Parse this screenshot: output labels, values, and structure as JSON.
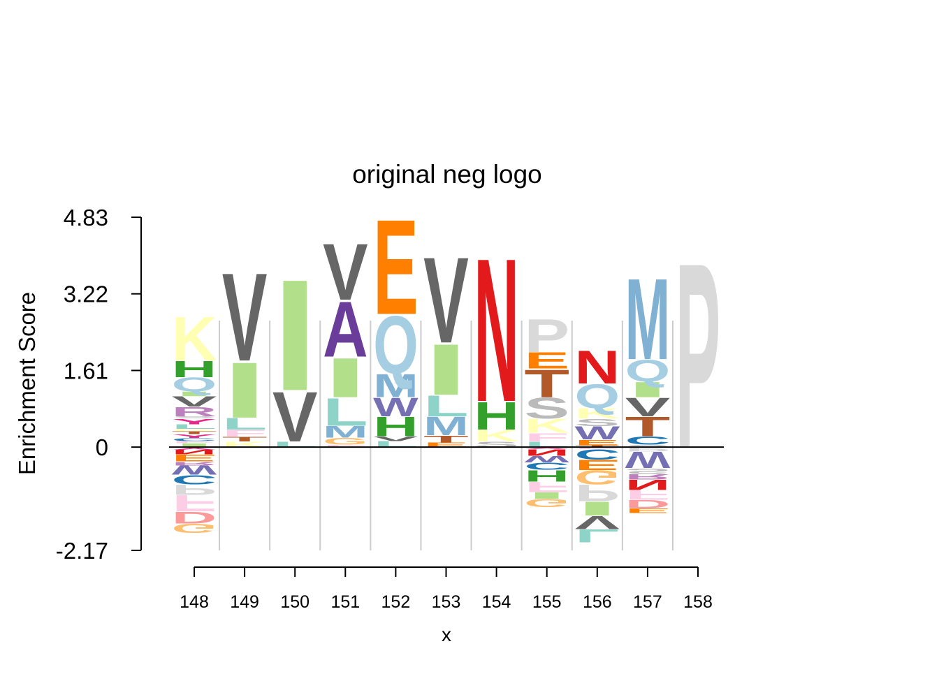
{
  "chart_data": {
    "type": "sequence-logo",
    "title": "original neg logo",
    "xlabel": "x",
    "ylabel": "Enrichment Score",
    "yticks": [
      "4.83",
      "3.22",
      "1.61",
      "0",
      "-2.17"
    ],
    "ylim": [
      -2.17,
      4.83
    ],
    "positions": [
      "148",
      "149",
      "150",
      "151",
      "152",
      "153",
      "154",
      "155",
      "156",
      "157",
      "158"
    ],
    "colors": {
      "A": "#6a3d9a",
      "C": "#1f78b4",
      "D": "#fb9a99",
      "E": "#ff7f00",
      "F": "#fccde5",
      "G": "#fdbf6f",
      "H": "#33a02c",
      "I": "#b2df8a",
      "K": "#ffffb3",
      "L": "#8dd3c7",
      "M": "#80b1d3",
      "N": "#e31a1c",
      "P": "#d9d9d9",
      "Q": "#a6cee3",
      "R": "#bc80bd",
      "S": "#bababa",
      "T": "#b15928",
      "V": "#666666",
      "W": "#7570b3",
      "Y": "#e7298a"
    },
    "columns": [
      {
        "position": "148",
        "positive": [
          [
            "I",
            0.08
          ],
          [
            "F",
            0.05
          ],
          [
            "C",
            0.06
          ],
          [
            "Y",
            0.08
          ],
          [
            "T",
            0.06
          ],
          [
            "K",
            0.05
          ],
          [
            "L",
            0.1
          ],
          [
            "Y",
            0.12
          ],
          [
            "S",
            0.05
          ],
          [
            "R",
            0.2
          ],
          [
            "V",
            0.22
          ],
          [
            "I",
            0.1
          ],
          [
            "Q",
            0.3
          ],
          [
            "H",
            0.35
          ],
          [
            "K",
            0.95
          ]
        ],
        "negative": [
          [
            "Y",
            0.06
          ],
          [
            "N",
            0.1
          ],
          [
            "E",
            0.15
          ],
          [
            "R",
            0.08
          ],
          [
            "W",
            0.2
          ],
          [
            "C",
            0.2
          ],
          [
            "P",
            0.22
          ],
          [
            "F",
            0.35
          ],
          [
            "D",
            0.25
          ],
          [
            "G",
            0.2
          ]
        ]
      },
      {
        "position": "149",
        "positive": [
          [
            "K",
            0.12
          ],
          [
            "T",
            0.1
          ],
          [
            "F",
            0.15
          ],
          [
            "L",
            0.25
          ],
          [
            "I",
            1.2
          ],
          [
            "V",
            1.9
          ]
        ],
        "negative": []
      },
      {
        "position": "150",
        "positive": [
          [
            "L",
            0.12
          ],
          [
            "V",
            1.08
          ],
          [
            "I",
            2.4
          ]
        ],
        "negative": []
      },
      {
        "position": "151",
        "positive": [
          [
            "F",
            0.05
          ],
          [
            "G",
            0.15
          ],
          [
            "M",
            0.25
          ],
          [
            "L",
            0.6
          ],
          [
            "I",
            0.85
          ],
          [
            "A",
            1.2
          ],
          [
            "V",
            1.22
          ]
        ],
        "negative": []
      },
      {
        "position": "152",
        "positive": [
          [
            "L",
            0.13
          ],
          [
            "V",
            0.1
          ],
          [
            "H",
            0.42
          ],
          [
            "W",
            0.4
          ],
          [
            "M",
            0.5
          ],
          [
            "Q",
            1.25
          ],
          [
            "E",
            2.05
          ]
        ],
        "negative": []
      },
      {
        "position": "153",
        "positive": [
          [
            "E",
            0.1
          ],
          [
            "T",
            0.15
          ],
          [
            "M",
            0.4
          ],
          [
            "L",
            0.45
          ],
          [
            "I",
            1.1
          ],
          [
            "V",
            1.85
          ]
        ],
        "negative": []
      },
      {
        "position": "154",
        "positive": [
          [
            "S",
            0.12
          ],
          [
            "K",
            0.25
          ],
          [
            "H",
            0.6
          ],
          [
            "N",
            3.1
          ]
        ],
        "negative": []
      },
      {
        "position": "155",
        "positive": [
          [
            "L",
            0.12
          ],
          [
            "F",
            0.18
          ],
          [
            "K",
            0.3
          ],
          [
            "S",
            0.45
          ],
          [
            "T",
            0.6
          ],
          [
            "E",
            0.35
          ],
          [
            "P",
            0.72
          ]
        ],
        "negative": [
          [
            "Y",
            0.05
          ],
          [
            "N",
            0.14
          ],
          [
            "W",
            0.14
          ],
          [
            "C",
            0.16
          ],
          [
            "H",
            0.24
          ],
          [
            "F",
            0.22
          ],
          [
            "I",
            0.14
          ],
          [
            "G",
            0.18
          ]
        ]
      },
      {
        "position": "156",
        "positive": [
          [
            "T",
            0.04
          ],
          [
            "E",
            0.12
          ],
          [
            "W",
            0.28
          ],
          [
            "S",
            0.16
          ],
          [
            "K",
            0.22
          ],
          [
            "Q",
            0.52
          ],
          [
            "N",
            0.72
          ]
        ],
        "negative": [
          [
            "F",
            0.05
          ],
          [
            "C",
            0.22
          ],
          [
            "E",
            0.22
          ],
          [
            "G",
            0.3
          ],
          [
            "P",
            0.36
          ],
          [
            "I",
            0.3
          ],
          [
            "V",
            0.28
          ],
          [
            "L",
            0.28
          ]
        ]
      },
      {
        "position": "157",
        "positive": [
          [
            "S",
            0.05
          ],
          [
            "C",
            0.18
          ],
          [
            "T",
            0.42
          ],
          [
            "V",
            0.4
          ],
          [
            "I",
            0.33
          ],
          [
            "Q",
            0.47
          ],
          [
            "M",
            1.75
          ]
        ],
        "negative": [
          [
            "P",
            0.1
          ],
          [
            "W",
            0.35
          ],
          [
            "S",
            0.12
          ],
          [
            "R",
            0.12
          ],
          [
            "N",
            0.22
          ],
          [
            "F",
            0.2
          ],
          [
            "D",
            0.18
          ],
          [
            "E",
            0.1
          ]
        ]
      },
      {
        "position": "158",
        "positive": [
          [
            "P",
            4.0
          ]
        ],
        "negative": []
      }
    ]
  }
}
